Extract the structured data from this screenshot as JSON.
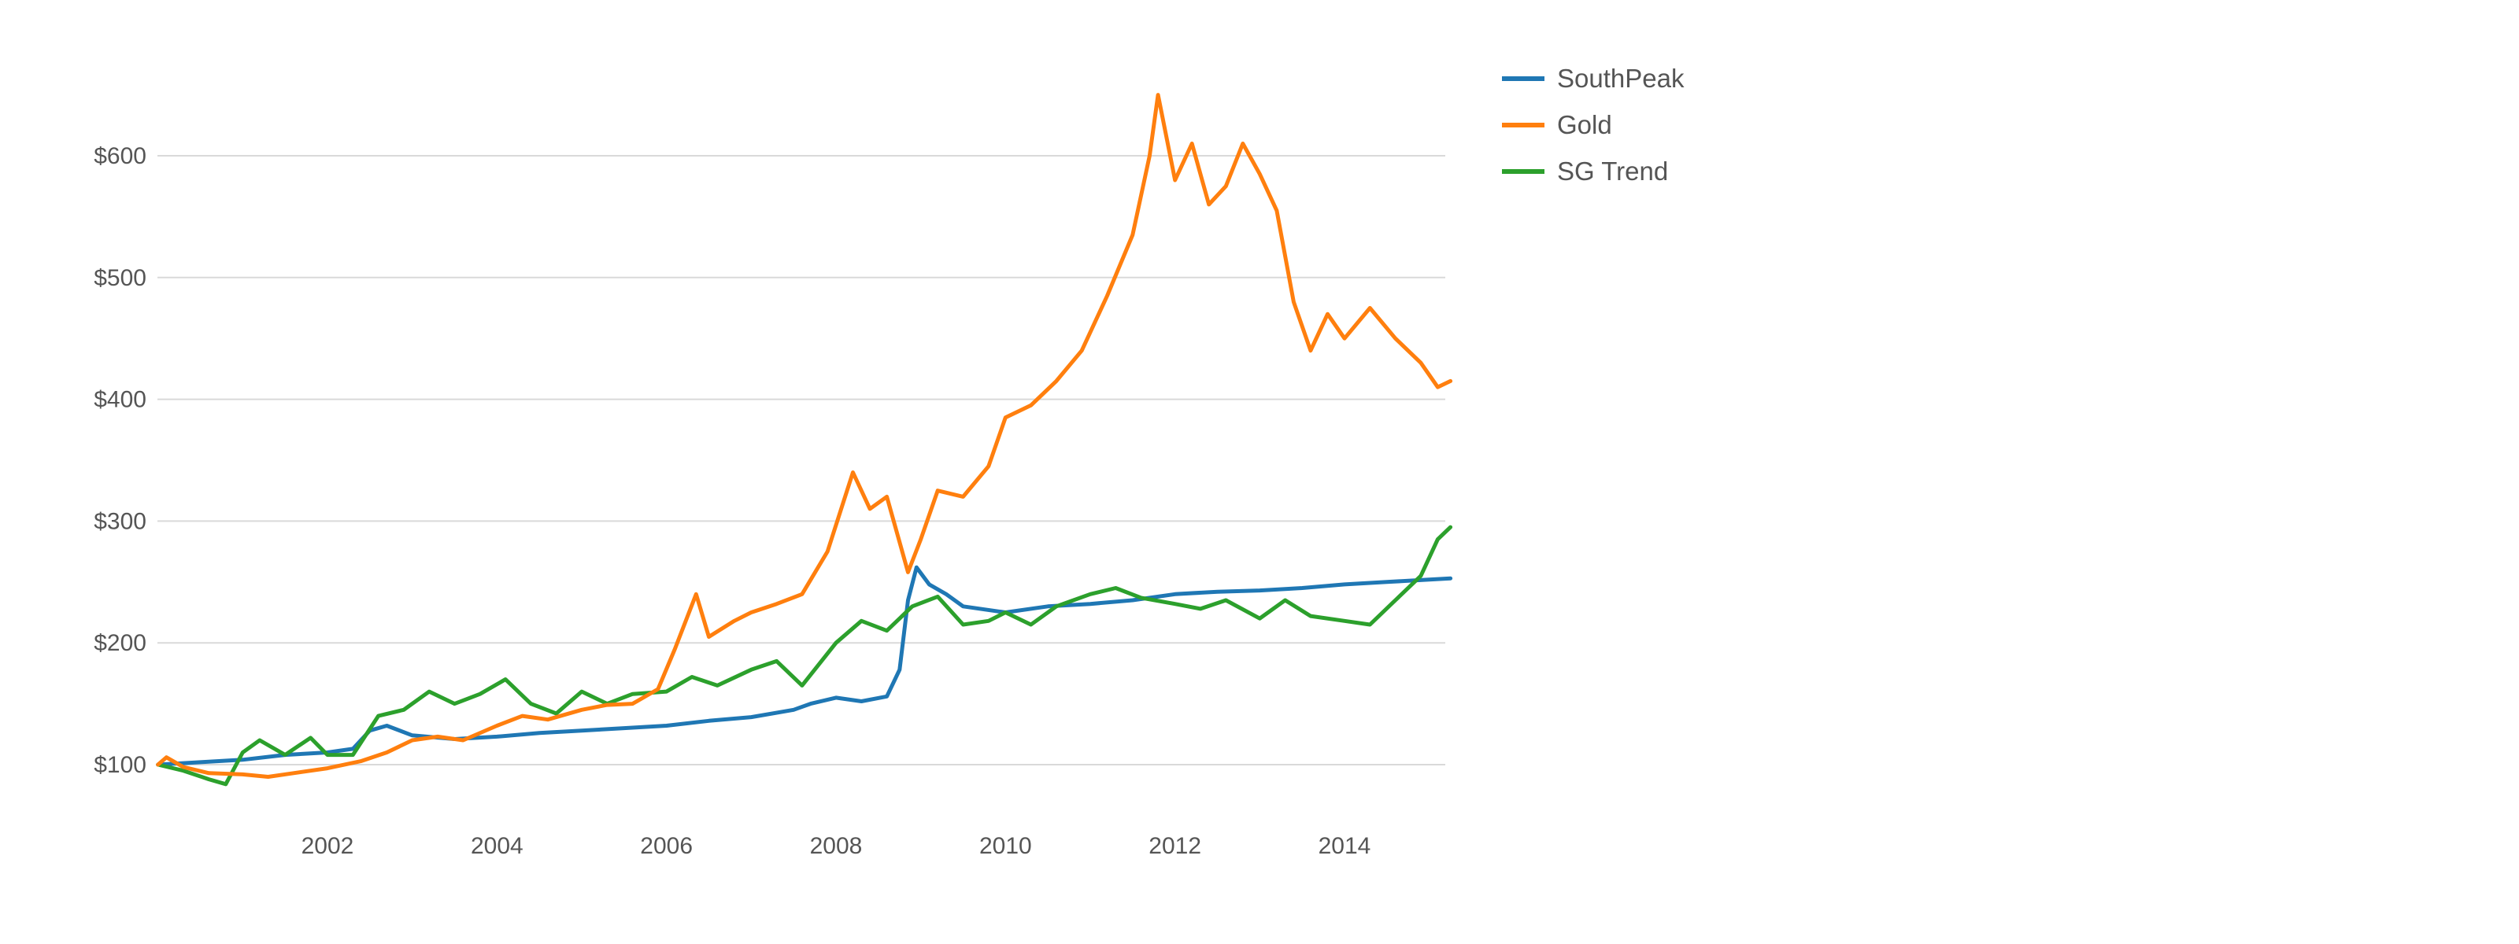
{
  "chart_data": {
    "type": "line",
    "title": "",
    "xlabel": "",
    "ylabel": "",
    "x_ticks": [
      "2002",
      "2004",
      "2006",
      "2008",
      "2010",
      "2012",
      "2014"
    ],
    "x_tick_values": [
      2002,
      2004,
      2006,
      2008,
      2010,
      2012,
      2014
    ],
    "y_ticks": [
      "$100",
      "$200",
      "$300",
      "$400",
      "$500",
      "$600"
    ],
    "y_tick_values": [
      100,
      200,
      300,
      400,
      500,
      600
    ],
    "xlim": [
      2000.0,
      2015.25
    ],
    "ylim": [
      50,
      700
    ],
    "grid": "horizontal",
    "legend_position": "top-right",
    "series": [
      {
        "name": "SouthPeak",
        "color": "#1f77b4",
        "points": [
          [
            2000.0,
            100
          ],
          [
            2000.5,
            102
          ],
          [
            2001.0,
            104
          ],
          [
            2001.5,
            108
          ],
          [
            2002.0,
            110
          ],
          [
            2002.3,
            113
          ],
          [
            2002.5,
            128
          ],
          [
            2002.7,
            132
          ],
          [
            2003.0,
            124
          ],
          [
            2003.5,
            121
          ],
          [
            2004.0,
            123
          ],
          [
            2004.5,
            126
          ],
          [
            2005.0,
            128
          ],
          [
            2005.5,
            130
          ],
          [
            2006.0,
            132
          ],
          [
            2006.5,
            136
          ],
          [
            2007.0,
            139
          ],
          [
            2007.5,
            145
          ],
          [
            2007.7,
            150
          ],
          [
            2008.0,
            155
          ],
          [
            2008.3,
            152
          ],
          [
            2008.6,
            156
          ],
          [
            2008.75,
            178
          ],
          [
            2008.85,
            235
          ],
          [
            2008.95,
            262
          ],
          [
            2009.1,
            248
          ],
          [
            2009.3,
            240
          ],
          [
            2009.5,
            230
          ],
          [
            2010.0,
            225
          ],
          [
            2010.5,
            230
          ],
          [
            2011.0,
            232
          ],
          [
            2011.5,
            235
          ],
          [
            2012.0,
            240
          ],
          [
            2012.5,
            242
          ],
          [
            2013.0,
            243
          ],
          [
            2013.5,
            245
          ],
          [
            2014.0,
            248
          ],
          [
            2014.5,
            250
          ],
          [
            2015.0,
            252
          ],
          [
            2015.25,
            253
          ]
        ]
      },
      {
        "name": "Gold",
        "color": "#ff7f0e",
        "points": [
          [
            2000.0,
            100
          ],
          [
            2000.1,
            106
          ],
          [
            2000.3,
            98
          ],
          [
            2000.6,
            93
          ],
          [
            2001.0,
            92
          ],
          [
            2001.3,
            90
          ],
          [
            2001.6,
            93
          ],
          [
            2002.0,
            97
          ],
          [
            2002.4,
            103
          ],
          [
            2002.7,
            110
          ],
          [
            2003.0,
            120
          ],
          [
            2003.3,
            123
          ],
          [
            2003.6,
            120
          ],
          [
            2004.0,
            132
          ],
          [
            2004.3,
            140
          ],
          [
            2004.6,
            137
          ],
          [
            2005.0,
            145
          ],
          [
            2005.3,
            149
          ],
          [
            2005.6,
            150
          ],
          [
            2005.9,
            162
          ],
          [
            2006.1,
            195
          ],
          [
            2006.35,
            240
          ],
          [
            2006.5,
            205
          ],
          [
            2006.8,
            218
          ],
          [
            2007.0,
            225
          ],
          [
            2007.3,
            232
          ],
          [
            2007.6,
            240
          ],
          [
            2007.9,
            275
          ],
          [
            2008.2,
            340
          ],
          [
            2008.4,
            310
          ],
          [
            2008.6,
            320
          ],
          [
            2008.85,
            258
          ],
          [
            2009.0,
            285
          ],
          [
            2009.2,
            325
          ],
          [
            2009.5,
            320
          ],
          [
            2009.8,
            345
          ],
          [
            2010.0,
            385
          ],
          [
            2010.3,
            395
          ],
          [
            2010.6,
            415
          ],
          [
            2010.9,
            440
          ],
          [
            2011.2,
            485
          ],
          [
            2011.5,
            535
          ],
          [
            2011.7,
            600
          ],
          [
            2011.8,
            650
          ],
          [
            2012.0,
            580
          ],
          [
            2012.2,
            610
          ],
          [
            2012.4,
            560
          ],
          [
            2012.6,
            575
          ],
          [
            2012.8,
            610
          ],
          [
            2013.0,
            585
          ],
          [
            2013.2,
            555
          ],
          [
            2013.4,
            480
          ],
          [
            2013.6,
            440
          ],
          [
            2013.8,
            470
          ],
          [
            2014.0,
            450
          ],
          [
            2014.3,
            475
          ],
          [
            2014.6,
            450
          ],
          [
            2014.9,
            430
          ],
          [
            2015.1,
            410
          ],
          [
            2015.25,
            415
          ]
        ]
      },
      {
        "name": "SG Trend",
        "color": "#2ca02c",
        "points": [
          [
            2000.0,
            100
          ],
          [
            2000.3,
            95
          ],
          [
            2000.6,
            88
          ],
          [
            2000.8,
            84
          ],
          [
            2001.0,
            110
          ],
          [
            2001.2,
            120
          ],
          [
            2001.5,
            108
          ],
          [
            2001.8,
            122
          ],
          [
            2002.0,
            108
          ],
          [
            2002.3,
            108
          ],
          [
            2002.6,
            140
          ],
          [
            2002.9,
            145
          ],
          [
            2003.2,
            160
          ],
          [
            2003.5,
            150
          ],
          [
            2003.8,
            158
          ],
          [
            2004.1,
            170
          ],
          [
            2004.4,
            150
          ],
          [
            2004.7,
            142
          ],
          [
            2005.0,
            160
          ],
          [
            2005.3,
            150
          ],
          [
            2005.6,
            158
          ],
          [
            2006.0,
            160
          ],
          [
            2006.3,
            172
          ],
          [
            2006.6,
            165
          ],
          [
            2007.0,
            178
          ],
          [
            2007.3,
            185
          ],
          [
            2007.6,
            165
          ],
          [
            2008.0,
            200
          ],
          [
            2008.3,
            218
          ],
          [
            2008.6,
            210
          ],
          [
            2008.9,
            230
          ],
          [
            2009.2,
            238
          ],
          [
            2009.5,
            215
          ],
          [
            2009.8,
            218
          ],
          [
            2010.0,
            225
          ],
          [
            2010.3,
            215
          ],
          [
            2010.6,
            230
          ],
          [
            2011.0,
            240
          ],
          [
            2011.3,
            245
          ],
          [
            2011.6,
            237
          ],
          [
            2012.0,
            232
          ],
          [
            2012.3,
            228
          ],
          [
            2012.6,
            235
          ],
          [
            2013.0,
            220
          ],
          [
            2013.3,
            235
          ],
          [
            2013.6,
            222
          ],
          [
            2014.0,
            218
          ],
          [
            2014.3,
            215
          ],
          [
            2014.6,
            235
          ],
          [
            2014.9,
            255
          ],
          [
            2015.1,
            285
          ],
          [
            2015.25,
            295
          ]
        ]
      }
    ]
  }
}
